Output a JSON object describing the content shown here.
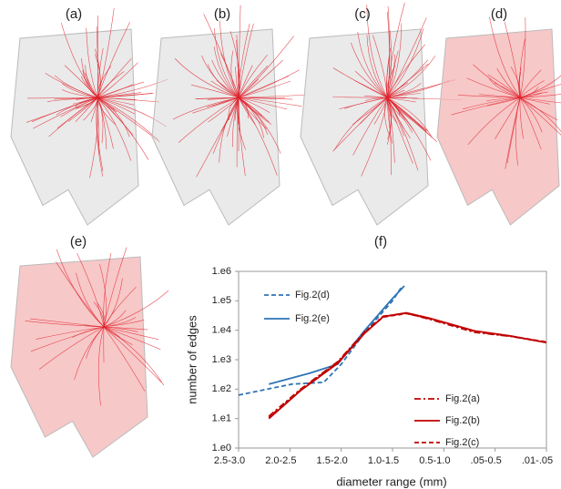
{
  "panels": [
    "(a)",
    "(b)",
    "(c)",
    "(d)",
    "(e)"
  ],
  "chart_data": {
    "type": "line",
    "title": "(f)",
    "y_label": "number of edges",
    "x_label": "diameter range (mm)",
    "log_y": true,
    "xlim": [
      0,
      6
    ],
    "ylim": [
      1,
      1000000
    ],
    "xticks": [
      {
        "value": 0,
        "label": "2.5-3.0"
      },
      {
        "value": 1,
        "label": "2.0-2.5"
      },
      {
        "value": 2,
        "label": "1.5-2.0"
      },
      {
        "value": 3,
        "label": "1.0-1.5"
      },
      {
        "value": 4,
        "label": "0.5-1.0"
      },
      {
        "value": 5,
        "label": ".05-0.5"
      },
      {
        "value": 6,
        "label": ".01-.05"
      }
    ],
    "yticks": [
      {
        "value": 1,
        "label": "1.e0"
      },
      {
        "value": 10,
        "label": "1.e1"
      },
      {
        "value": 100,
        "label": "1.e2"
      },
      {
        "value": 1000,
        "label": "1.e3"
      },
      {
        "value": 10000,
        "label": "1.e4"
      },
      {
        "value": 100000,
        "label": "1.e5"
      },
      {
        "value": 1000000,
        "label": "1.e6"
      }
    ],
    "series": [
      {
        "name": "Fig.2(d)",
        "color": "#2e75b6",
        "style": "dashed",
        "x": [
          0,
          1.04,
          1.66,
          2.0,
          2.46,
          3.0,
          3.18
        ],
        "values": [
          63,
          148,
          170,
          700,
          8500,
          100000,
          300000
        ]
      },
      {
        "name": "Fig.2(e)",
        "color": "#2e75b6",
        "style": "solid",
        "x": [
          0.59,
          1.39,
          1.93,
          2.46,
          3.0,
          3.23
        ],
        "values": [
          148,
          350,
          700,
          10000,
          120000,
          320000
        ]
      },
      {
        "name": "Fig.2(a)",
        "color": "#c00000",
        "style": "dashdot",
        "x": [
          0.59,
          1.21,
          1.93,
          2.46,
          2.82,
          3.27,
          3.71,
          4.6,
          5.3,
          6.0
        ],
        "values": [
          12,
          100,
          850,
          9000,
          30000,
          38000,
          24000,
          8500,
          6200,
          3900
        ]
      },
      {
        "name": "Fig.2(b)",
        "color": "#c00000",
        "style": "solid",
        "x": [
          0.59,
          1.21,
          1.93,
          2.46,
          2.82,
          3.27,
          3.71,
          4.6,
          5.3,
          6.0
        ],
        "values": [
          10,
          90,
          750,
          8000,
          29000,
          39000,
          26000,
          9500,
          6400,
          3800
        ]
      },
      {
        "name": "Fig.2(c)",
        "color": "#c00000",
        "style": "dashed",
        "x": [
          0.59,
          1.21,
          1.93,
          2.46,
          2.82,
          3.27,
          3.71,
          4.6,
          5.3,
          6.0
        ],
        "values": [
          11,
          95,
          800,
          8500,
          28000,
          37000,
          25000,
          9000,
          6300,
          4000
        ]
      }
    ]
  }
}
